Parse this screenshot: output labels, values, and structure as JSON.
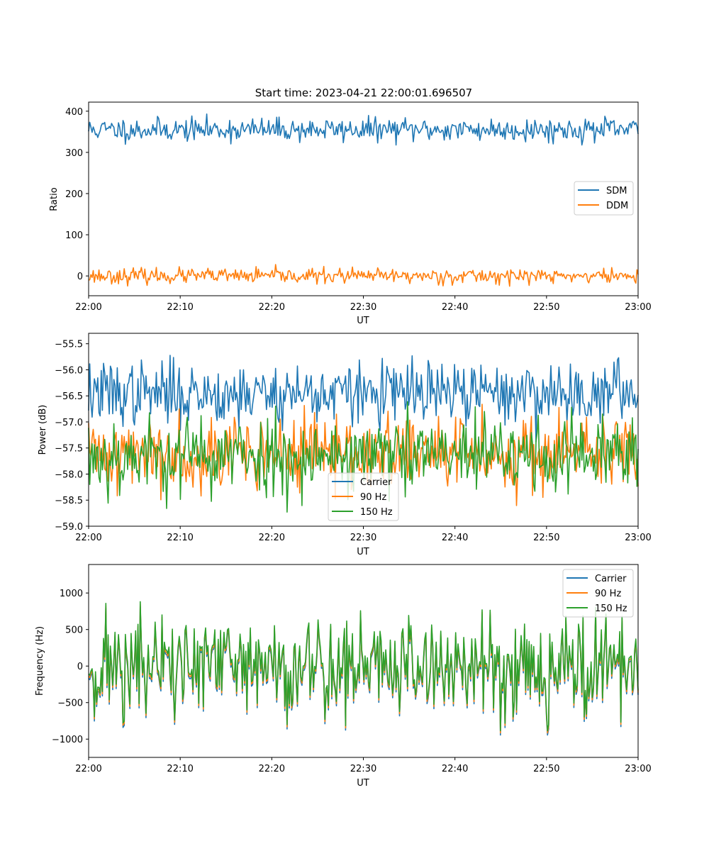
{
  "chart_data": [
    {
      "type": "line",
      "title": "Start time: 2023-04-21 22:00:01.696507",
      "xlabel": "UT",
      "ylabel": "Ratio",
      "x_range": [
        "22:00",
        "23:00"
      ],
      "x_ticks": [
        "22:00",
        "22:10",
        "22:20",
        "22:30",
        "22:40",
        "22:50",
        "23:00"
      ],
      "ylim": [
        -48,
        422
      ],
      "y_ticks": [
        0,
        100,
        200,
        300,
        400
      ],
      "y_tick_labels": [
        "0",
        "100",
        "200",
        "300",
        "400"
      ],
      "legend": "center-right",
      "grid": false,
      "series": [
        {
          "name": "SDM",
          "color": "#1f77b4",
          "mean": 355,
          "noise": 14,
          "seed": 11,
          "peak_max": 402,
          "peak_min": 318
        },
        {
          "name": "DDM",
          "color": "#ff7f0e",
          "mean": 0,
          "noise": 9,
          "seed": 23,
          "peak_max": 28,
          "peak_min": -25
        }
      ]
    },
    {
      "type": "line",
      "title": "",
      "xlabel": "UT",
      "ylabel": "Power (dB)",
      "x_range": [
        "22:00",
        "23:00"
      ],
      "x_ticks": [
        "22:00",
        "22:10",
        "22:20",
        "22:30",
        "22:40",
        "22:50",
        "23:00"
      ],
      "ylim": [
        -59.0,
        -55.3
      ],
      "y_ticks": [
        -59.0,
        -58.5,
        -58.0,
        -57.5,
        -57.0,
        -56.5,
        -56.0,
        -55.5
      ],
      "y_tick_labels": [
        "−59.0",
        "−58.5",
        "−58.0",
        "−57.5",
        "−57.0",
        "−56.5",
        "−56.0",
        "−55.5"
      ],
      "legend": "lower-center",
      "grid": false,
      "series": [
        {
          "name": "Carrier",
          "color": "#1f77b4",
          "mean": -56.45,
          "noise": 0.3,
          "seed": 37,
          "peak_max": -55.4,
          "peak_min": -57.6
        },
        {
          "name": "90 Hz",
          "color": "#ff7f0e",
          "mean": -57.6,
          "noise": 0.35,
          "seed": 41,
          "peak_max": -56.1,
          "peak_min": -58.8
        },
        {
          "name": "150 Hz",
          "color": "#2ca02c",
          "mean": -57.65,
          "noise": 0.38,
          "seed": 53,
          "peak_max": -55.7,
          "peak_min": -58.8
        }
      ]
    },
    {
      "type": "line",
      "title": "",
      "xlabel": "UT",
      "ylabel": "Frequency (Hz)",
      "x_range": [
        "22:00",
        "23:00"
      ],
      "x_ticks": [
        "22:00",
        "22:10",
        "22:20",
        "22:30",
        "22:40",
        "22:50",
        "23:00"
      ],
      "ylim": [
        -1250,
        1390
      ],
      "y_ticks": [
        -1000,
        -500,
        0,
        500,
        1000
      ],
      "y_tick_labels": [
        "−1000",
        "−500",
        "0",
        "500",
        "1000"
      ],
      "legend": "top-right",
      "grid": false,
      "series": [
        {
          "name": "Carrier",
          "color": "#1f77b4",
          "mean": -50,
          "noise": 370,
          "seed": 71,
          "peak_max": 1240,
          "peak_min": -1130
        },
        {
          "name": "90 Hz",
          "color": "#ff7f0e",
          "mean": -20,
          "noise": 370,
          "seed": 71,
          "peak_max": 1240,
          "peak_min": -1100
        },
        {
          "name": "150 Hz",
          "color": "#2ca02c",
          "mean": 10,
          "noise": 370,
          "seed": 71,
          "peak_max": 1240,
          "peak_min": -1080
        }
      ]
    }
  ]
}
